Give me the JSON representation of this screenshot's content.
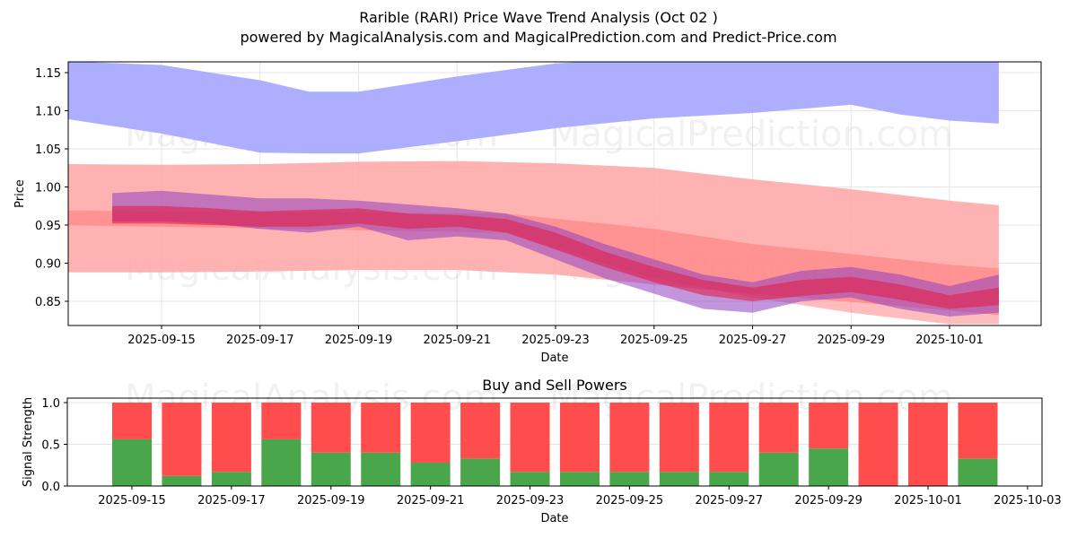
{
  "header": {
    "title": "Rarible (RARI) Price Wave Trend Analysis (Oct 02 )",
    "subtitle": "powered by MagicalAnalysis.com and MagicalPrediction.com and Predict-Price.com"
  },
  "watermarks": [
    "MagicalAnalysis.com",
    "MagicalPrediction.com"
  ],
  "colors": {
    "blue_band": "#aaaaff",
    "red_band": "#ffaaaa",
    "wave_red": "#e0204a",
    "wave_purple": "#9040c0",
    "buy": "#4aa64a",
    "sell": "#ff4c4c",
    "grid": "#e6e6e6"
  },
  "chart_data": [
    {
      "type": "area",
      "title": "",
      "xlabel": "Date",
      "ylabel": "Price",
      "ylim": [
        0.82,
        1.165
      ],
      "xlim": [
        "2025-09-13",
        "2025-10-03"
      ],
      "grid": true,
      "x_ticks": [
        "2025-09-15",
        "2025-09-17",
        "2025-09-19",
        "2025-09-21",
        "2025-09-23",
        "2025-09-25",
        "2025-09-27",
        "2025-09-29",
        "2025-10-01"
      ],
      "y_ticks": [
        "0.85",
        "0.90",
        "0.95",
        "1.00",
        "1.05",
        "1.10",
        "1.15"
      ],
      "series": [
        {
          "name": "upper-blue-band",
          "x": [
            "2025-09-13",
            "2025-09-15",
            "2025-09-17",
            "2025-09-18",
            "2025-09-19",
            "2025-09-21",
            "2025-09-23",
            "2025-09-25",
            "2025-09-27",
            "2025-09-29",
            "2025-09-30",
            "2025-10-01",
            "2025-10-02"
          ],
          "upper": [
            1.165,
            1.16,
            1.14,
            1.125,
            1.125,
            1.145,
            1.162,
            1.17,
            1.17,
            1.17,
            1.17,
            1.17,
            1.165
          ],
          "lower": [
            1.09,
            1.07,
            1.045,
            1.044,
            1.044,
            1.06,
            1.077,
            1.09,
            1.097,
            1.108,
            1.095,
            1.087,
            1.083
          ]
        },
        {
          "name": "upper-red-band",
          "x": [
            "2025-09-13",
            "2025-09-15",
            "2025-09-17",
            "2025-09-19",
            "2025-09-21",
            "2025-09-23",
            "2025-09-25",
            "2025-09-27",
            "2025-09-29",
            "2025-10-01",
            "2025-10-02"
          ],
          "upper": [
            1.03,
            1.029,
            1.03,
            1.033,
            1.034,
            1.031,
            1.025,
            1.01,
            0.997,
            0.982,
            0.976
          ],
          "lower": [
            0.888,
            0.888,
            0.889,
            0.891,
            0.891,
            0.885,
            0.872,
            0.86,
            0.849,
            0.838,
            0.832
          ]
        },
        {
          "name": "lower-red-band",
          "x": [
            "2025-09-13",
            "2025-09-22",
            "2025-09-25",
            "2025-09-27",
            "2025-09-29",
            "2025-10-01",
            "2025-10-02"
          ],
          "upper": [
            0.969,
            0.965,
            0.945,
            0.925,
            0.912,
            0.898,
            0.893
          ],
          "lower": [
            0.95,
            0.94,
            0.88,
            0.855,
            0.835,
            0.82,
            0.82
          ]
        },
        {
          "name": "price-wave-purple",
          "x": [
            "2025-09-14",
            "2025-09-15",
            "2025-09-16",
            "2025-09-17",
            "2025-09-18",
            "2025-09-19",
            "2025-09-20",
            "2025-09-21",
            "2025-09-22",
            "2025-09-23",
            "2025-09-24",
            "2025-09-25",
            "2025-09-26",
            "2025-09-27",
            "2025-09-28",
            "2025-09-29",
            "2025-09-30",
            "2025-10-01",
            "2025-10-02"
          ],
          "upper": [
            0.992,
            0.995,
            0.99,
            0.985,
            0.985,
            0.982,
            0.977,
            0.972,
            0.965,
            0.948,
            0.925,
            0.905,
            0.885,
            0.875,
            0.89,
            0.895,
            0.885,
            0.87,
            0.885
          ],
          "lower": [
            0.955,
            0.955,
            0.952,
            0.945,
            0.94,
            0.948,
            0.93,
            0.935,
            0.93,
            0.905,
            0.88,
            0.86,
            0.84,
            0.835,
            0.85,
            0.855,
            0.84,
            0.83,
            0.835
          ]
        },
        {
          "name": "price-wave-red",
          "x": [
            "2025-09-14",
            "2025-09-15",
            "2025-09-16",
            "2025-09-17",
            "2025-09-18",
            "2025-09-19",
            "2025-09-20",
            "2025-09-21",
            "2025-09-22",
            "2025-09-23",
            "2025-09-24",
            "2025-09-25",
            "2025-09-26",
            "2025-09-27",
            "2025-09-28",
            "2025-09-29",
            "2025-09-30",
            "2025-10-01",
            "2025-10-02"
          ],
          "upper": [
            0.975,
            0.975,
            0.972,
            0.968,
            0.97,
            0.972,
            0.965,
            0.963,
            0.958,
            0.94,
            0.915,
            0.895,
            0.878,
            0.868,
            0.878,
            0.882,
            0.872,
            0.858,
            0.868
          ],
          "lower": [
            0.952,
            0.952,
            0.95,
            0.948,
            0.948,
            0.952,
            0.945,
            0.948,
            0.94,
            0.918,
            0.895,
            0.875,
            0.858,
            0.85,
            0.857,
            0.862,
            0.852,
            0.84,
            0.845
          ]
        }
      ]
    },
    {
      "type": "bar",
      "title": "Buy and Sell Powers",
      "xlabel": "Date",
      "ylabel": "Signal Strength",
      "ylim": [
        0,
        1.05
      ],
      "grid": true,
      "x_ticks": [
        "2025-09-15",
        "2025-09-17",
        "2025-09-19",
        "2025-09-21",
        "2025-09-23",
        "2025-09-25",
        "2025-09-27",
        "2025-09-29",
        "2025-10-01",
        "2025-10-03"
      ],
      "y_ticks": [
        "0.0",
        "0.5",
        "1.0"
      ],
      "categories": [
        "2025-09-15",
        "2025-09-16",
        "2025-09-17",
        "2025-09-18",
        "2025-09-19",
        "2025-09-20",
        "2025-09-21",
        "2025-09-22",
        "2025-09-23",
        "2025-09-24",
        "2025-09-25",
        "2025-09-26",
        "2025-09-27",
        "2025-09-28",
        "2025-09-29",
        "2025-09-30",
        "2025-10-01",
        "2025-10-02"
      ],
      "series": [
        {
          "name": "Buy",
          "values": [
            0.56,
            0.12,
            0.17,
            0.56,
            0.4,
            0.4,
            0.28,
            0.33,
            0.17,
            0.17,
            0.17,
            0.17,
            0.17,
            0.4,
            0.45,
            0.0,
            0.0,
            0.33
          ]
        },
        {
          "name": "Sell",
          "values": [
            0.44,
            0.88,
            0.83,
            0.44,
            0.6,
            0.6,
            0.72,
            0.67,
            0.83,
            0.83,
            0.83,
            0.83,
            0.83,
            0.6,
            0.55,
            1.0,
            1.0,
            0.67
          ]
        }
      ]
    }
  ]
}
